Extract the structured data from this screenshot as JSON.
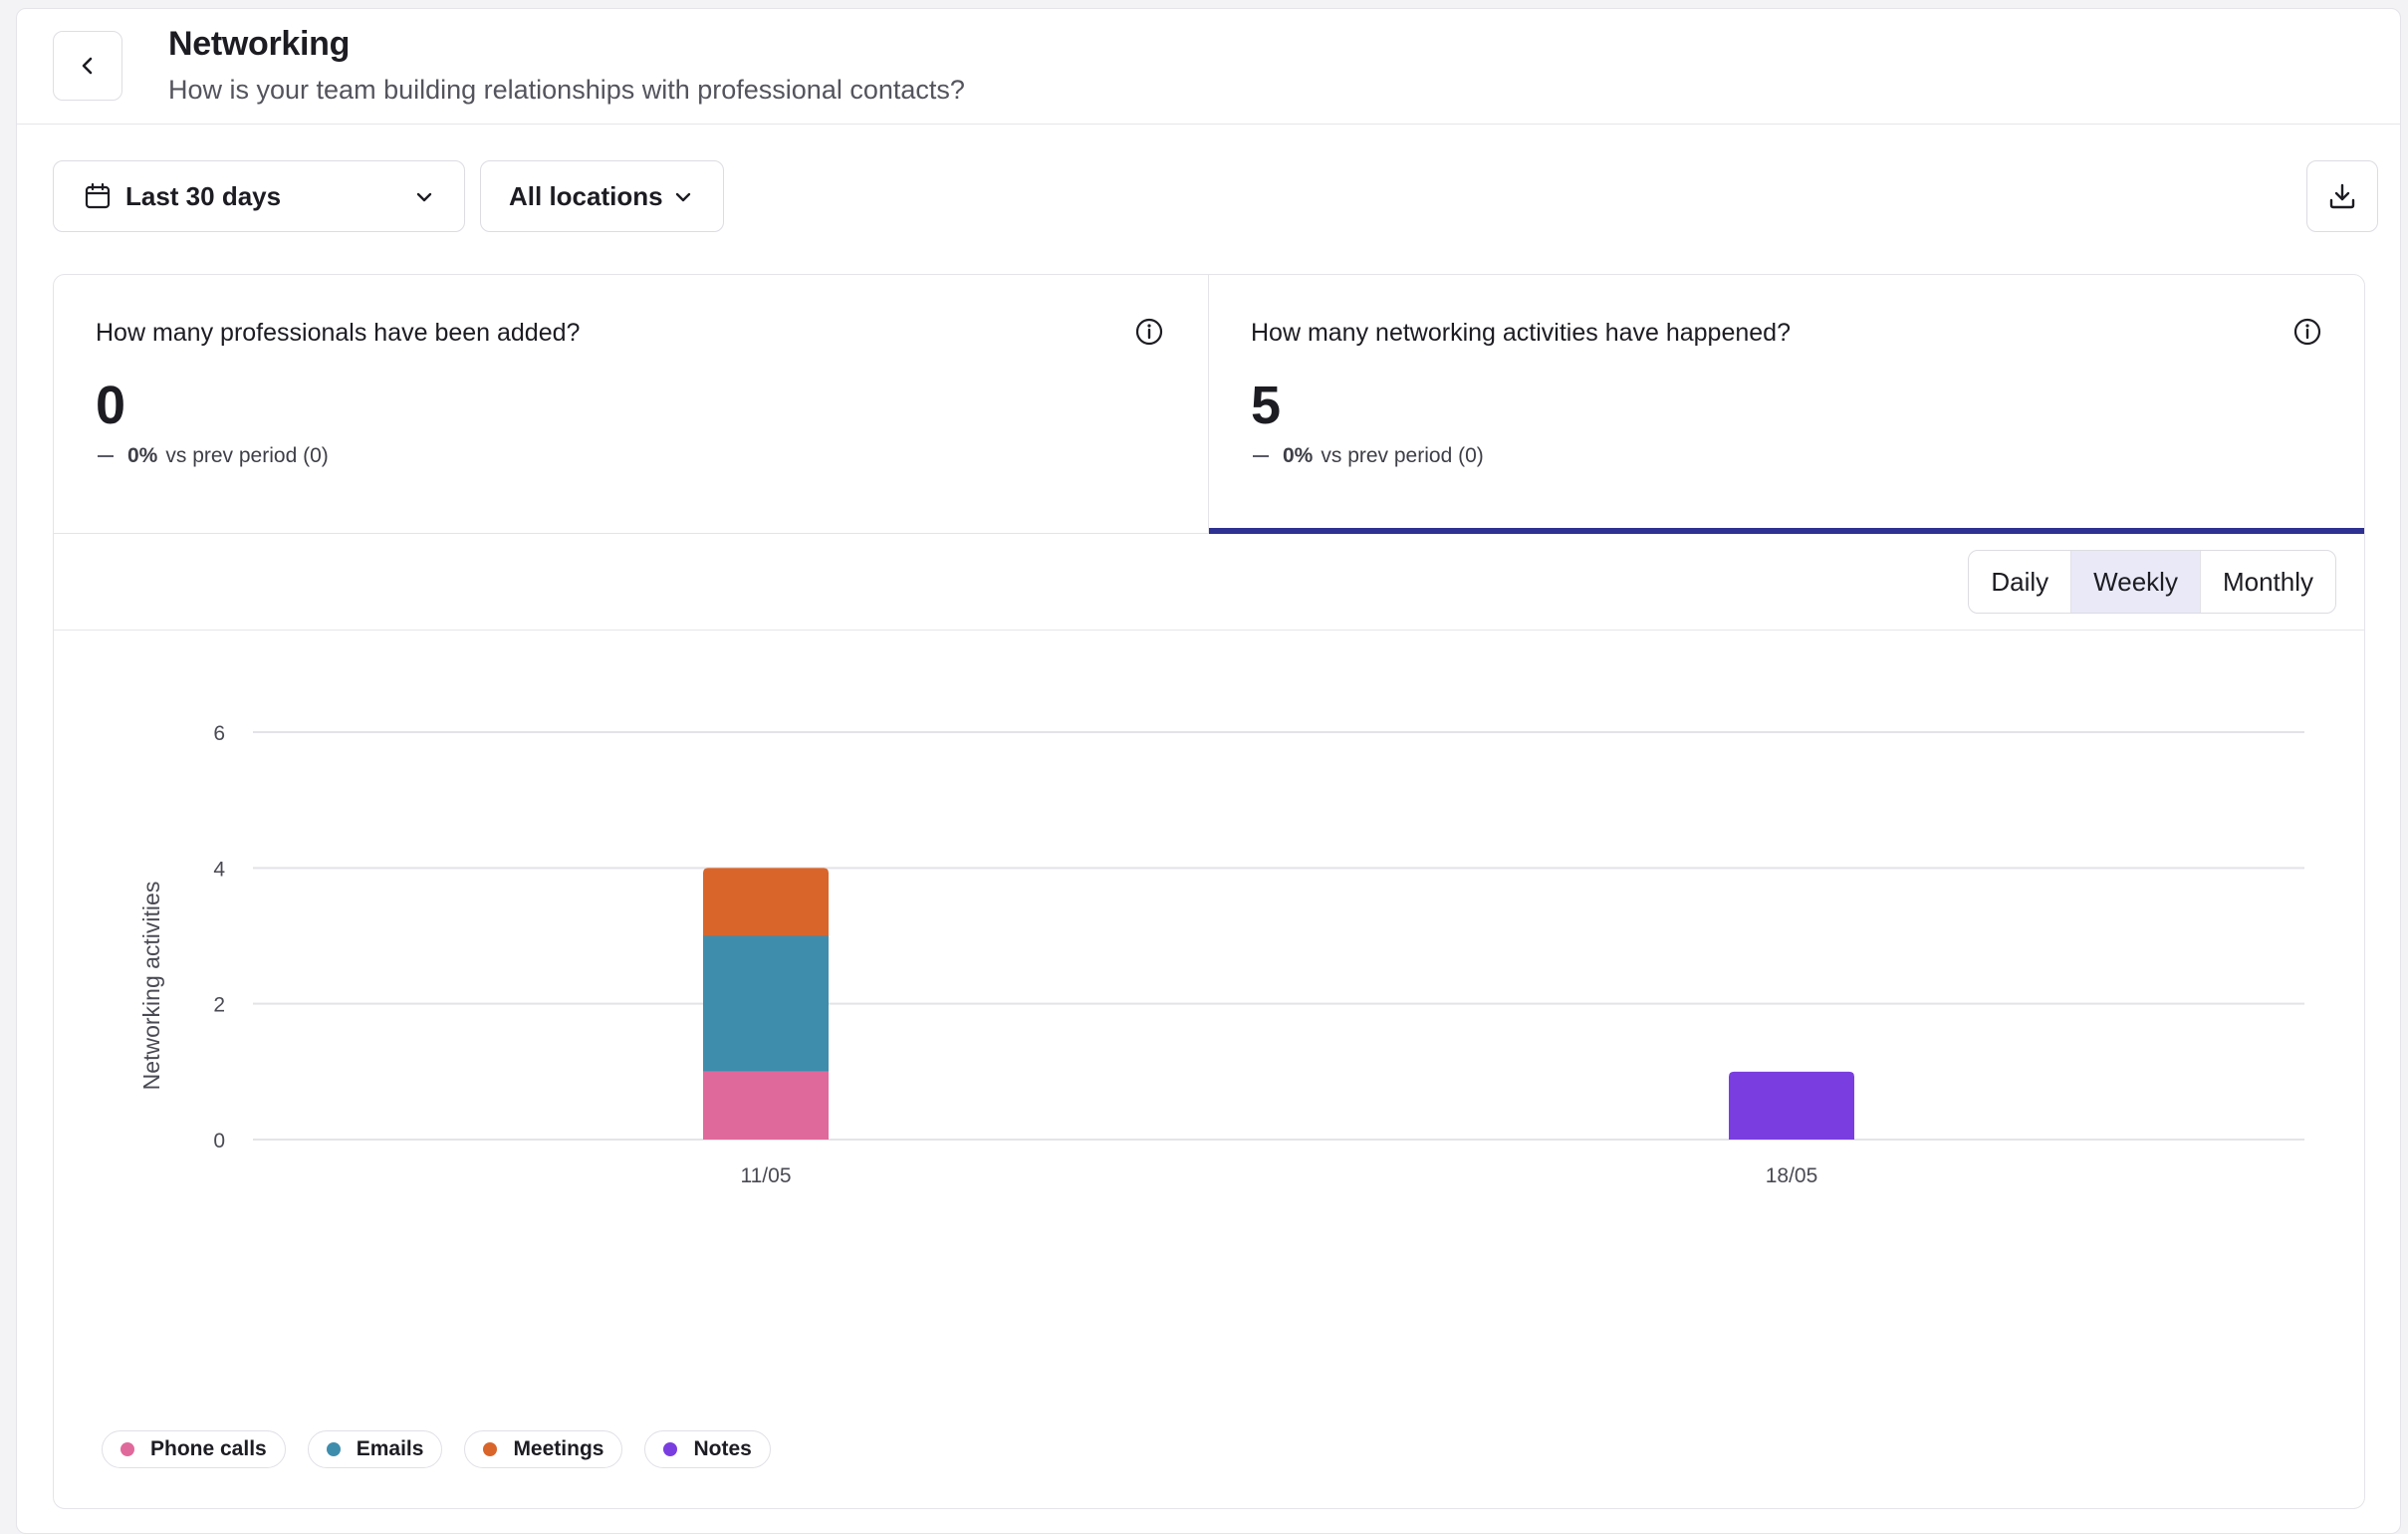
{
  "header": {
    "back_label": "Back",
    "title": "Networking",
    "subtitle": "How is your team building relationships with professional contacts?"
  },
  "filters": {
    "date_range": "Last 30 days",
    "location": "All locations"
  },
  "icons": {
    "back": "chevron-left-icon",
    "calendar": "calendar-icon",
    "dropdown": "chevron-down-icon",
    "download": "download-icon",
    "info": "info-icon"
  },
  "stats": [
    {
      "question": "How many professionals have been added?",
      "value": "0",
      "change_pct": "0%",
      "change_text": "vs prev period (0)",
      "selected": false
    },
    {
      "question": "How many networking activities have happened?",
      "value": "5",
      "change_pct": "0%",
      "change_text": "vs prev period (0)",
      "selected": true
    }
  ],
  "granularity": {
    "options": [
      "Daily",
      "Weekly",
      "Monthly"
    ],
    "selected": "Weekly"
  },
  "colors": {
    "accent": "#2e3191",
    "phone_calls": "#e0699b",
    "emails": "#3f8dad",
    "meetings": "#d9652b",
    "notes": "#7a3ee0"
  },
  "chart_data": {
    "type": "bar",
    "stacked": true,
    "categories": [
      "11/05",
      "18/05"
    ],
    "series": [
      {
        "name": "Phone calls",
        "values": [
          1,
          0
        ],
        "color": "#e0699b"
      },
      {
        "name": "Emails",
        "values": [
          2,
          0
        ],
        "color": "#3f8dad"
      },
      {
        "name": "Meetings",
        "values": [
          1,
          0
        ],
        "color": "#d9652b"
      },
      {
        "name": "Notes",
        "values": [
          0,
          1
        ],
        "color": "#7a3ee0"
      }
    ],
    "ylabel": "Networking activities",
    "xlabel": "",
    "ylim": [
      0,
      6
    ],
    "yticks": [
      0,
      2,
      4,
      6
    ],
    "grid": true,
    "legend": "bottom-left"
  }
}
